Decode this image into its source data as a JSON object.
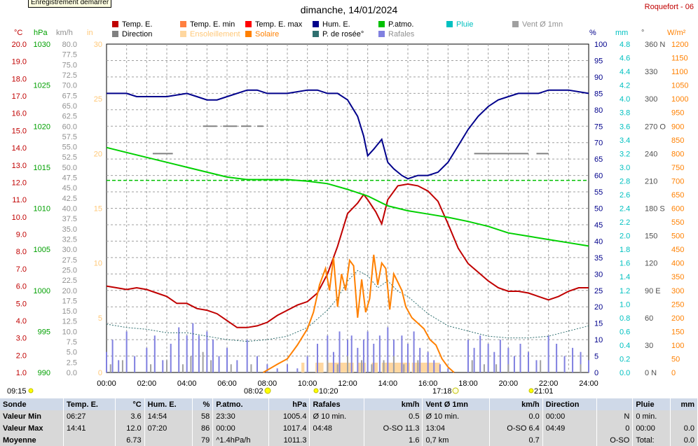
{
  "tooltip": "Enregistrement démarrer",
  "title": "dimanche, 14/01/2024",
  "station": "Roquefort - 06",
  "legend": [
    {
      "label": "Temp. E.",
      "color": "#c00000"
    },
    {
      "label": "Temp. E. min",
      "color": "#ff7f3f"
    },
    {
      "label": "Temp. E. max",
      "color": "#ff0000"
    },
    {
      "label": "Hum. E.",
      "color": "#00008b"
    },
    {
      "label": "P.atmo.",
      "color": "#00c000"
    },
    {
      "label": "Pluie",
      "color": "#00c0c0"
    },
    {
      "label": "Vent Ø 1mn",
      "color": "#a0a0a0"
    },
    {
      "label": "Direction",
      "color": "#808080"
    },
    {
      "label": "Ensoleillement",
      "color": "#ffd7a0"
    },
    {
      "label": "Solaire",
      "color": "#ff8000"
    },
    {
      "label": "P. de rosée°",
      "color": "#2f6f6f"
    },
    {
      "label": "Rafales",
      "color": "#8080e0"
    }
  ],
  "axis_units": {
    "temp": "°C",
    "press": "hPa",
    "wind": "km/h",
    "rain_in": "in",
    "hum": "%",
    "rain": "mm",
    "dir": "°",
    "solar": "W/m²"
  },
  "sun": {
    "rise": "08:02",
    "set": "17:18",
    "moonrise": "09:15",
    "moon_up": "10:20",
    "moonset": "21:01"
  },
  "chart_data": {
    "type": "line",
    "title": "dimanche, 14/01/2024",
    "x_ticks": [
      "00:00",
      "02:00",
      "04:00",
      "06:00",
      "08:00",
      "10:00",
      "12:00",
      "14:00",
      "16:00",
      "18:00",
      "20:00",
      "22:00",
      "24:00"
    ],
    "axes": {
      "temp": {
        "ticks": [
          "20.0",
          "19.0",
          "18.0",
          "17.0",
          "16.0",
          "15.0",
          "14.0",
          "13.0",
          "12.0",
          "11.0",
          "10.0",
          "9.0",
          "8.0",
          "7.0",
          "6.0",
          "5.0",
          "4.0",
          "3.0",
          "2.0",
          "1.0"
        ],
        "range": [
          1,
          20
        ]
      },
      "press": {
        "ticks": [
          "1030",
          "1025",
          "1020",
          "1015",
          "1010",
          "1005",
          "1000",
          "995",
          "990"
        ],
        "range": [
          990,
          1030
        ]
      },
      "wind": {
        "ticks": [
          "80.0",
          "77.5",
          "75.0",
          "72.5",
          "70.0",
          "67.5",
          "65.0",
          "62.5",
          "60.0",
          "57.5",
          "55.0",
          "52.5",
          "50.0",
          "47.5",
          "45.0",
          "42.5",
          "40.0",
          "37.5",
          "35.0",
          "32.5",
          "30.0",
          "27.5",
          "25.0",
          "22.5",
          "20.0",
          "17.5",
          "15.0",
          "12.5",
          "10.0",
          "7.5",
          "5.0",
          "2.5",
          "0.0"
        ],
        "range": [
          0,
          80
        ]
      },
      "rain_in": {
        "ticks": [
          "30",
          "25",
          "20",
          "15",
          "10",
          "5",
          "0"
        ],
        "range": [
          0,
          30
        ]
      },
      "hum": {
        "ticks": [
          "100",
          "95",
          "90",
          "85",
          "80",
          "75",
          "70",
          "65",
          "60",
          "55",
          "50",
          "45",
          "40",
          "35",
          "30",
          "25",
          "20",
          "15",
          "10",
          "5",
          "0"
        ],
        "range": [
          0,
          100
        ]
      },
      "rain": {
        "ticks": [
          "4.8",
          "4.6",
          "4.4",
          "4.2",
          "4.0",
          "3.8",
          "3.6",
          "3.4",
          "3.2",
          "3.0",
          "2.8",
          "2.6",
          "2.4",
          "2.2",
          "2.0",
          "1.8",
          "1.6",
          "1.4",
          "1.2",
          "1.0",
          "0.8",
          "0.6",
          "0.4",
          "0.2",
          "0.0"
        ],
        "range": [
          0,
          5
        ]
      },
      "dir": {
        "ticks": [
          "360 N",
          "330",
          "300",
          "270 O",
          "240",
          "210",
          "180 S",
          "150",
          "120",
          "90 E",
          "60",
          "30",
          "0 N"
        ],
        "range": [
          0,
          360
        ]
      },
      "solar": {
        "ticks": [
          "1200",
          "1150",
          "1100",
          "1050",
          "1000",
          "950",
          "900",
          "850",
          "800",
          "750",
          "700",
          "650",
          "600",
          "550",
          "500",
          "450",
          "400",
          "350",
          "300",
          "250",
          "200",
          "150",
          "100",
          "50",
          "0"
        ],
        "range": [
          0,
          1200
        ]
      }
    },
    "series": [
      {
        "name": "Temp. E.",
        "axis": "temp",
        "color": "#c00000",
        "x": [
          0,
          0.5,
          1,
          1.5,
          2,
          2.5,
          3,
          3.5,
          4,
          4.5,
          5,
          5.5,
          6,
          6.5,
          7,
          7.5,
          8,
          8.5,
          9,
          9.5,
          10,
          10.5,
          11,
          11.5,
          12,
          12.5,
          12.8,
          13,
          13.4,
          13.7,
          14,
          14.5,
          15,
          15.5,
          16,
          16.5,
          17,
          17.5,
          18,
          18.5,
          19,
          19.5,
          20,
          20.5,
          21,
          21.5,
          22,
          22.5,
          23,
          23.5,
          24
        ],
        "y": [
          6.0,
          5.9,
          5.8,
          5.9,
          5.8,
          5.6,
          5.4,
          5.0,
          5.0,
          4.7,
          4.6,
          4.4,
          4.0,
          3.6,
          3.6,
          3.7,
          3.9,
          4.3,
          4.6,
          4.9,
          5.1,
          5.6,
          6.7,
          8.3,
          10.2,
          10.8,
          11.3,
          11.0,
          10.3,
          9.6,
          11.0,
          11.8,
          11.9,
          11.8,
          11.5,
          10.9,
          9.6,
          8.2,
          7.3,
          6.8,
          6.3,
          5.9,
          5.7,
          5.7,
          5.6,
          5.4,
          5.2,
          5.4,
          5.7,
          5.9,
          5.9
        ]
      },
      {
        "name": "Hum. E.",
        "axis": "hum",
        "color": "#00008b",
        "x": [
          0,
          1,
          1.5,
          2,
          3,
          4,
          4.5,
          5,
          5.5,
          6,
          7,
          7.5,
          8,
          9,
          10,
          10.5,
          11,
          11.5,
          12,
          12.5,
          12.8,
          13,
          13.3,
          13.7,
          14,
          14.3,
          14.7,
          15,
          15.5,
          16,
          16.5,
          17,
          17.5,
          18,
          18.5,
          19,
          19.5,
          20,
          20.5,
          21,
          21.5,
          22,
          23,
          24
        ],
        "y": [
          85,
          85,
          84,
          84,
          84,
          85,
          84,
          83,
          83,
          84,
          86,
          86,
          85,
          85,
          86,
          86,
          85,
          85,
          83,
          78,
          72,
          66,
          68,
          71,
          64,
          62,
          60,
          59,
          60,
          60,
          61,
          64,
          69,
          74,
          78,
          81,
          83,
          84,
          85,
          85,
          85,
          86,
          86,
          85
        ]
      },
      {
        "name": "P.atmo.",
        "axis": "press",
        "color": "#00d000",
        "x": [
          0,
          1,
          2,
          3,
          4,
          5,
          6,
          7,
          8,
          9,
          10,
          11,
          12,
          13,
          14,
          15,
          16,
          17,
          18,
          19,
          20,
          21,
          22,
          23,
          24
        ],
        "y": [
          1017.4,
          1016.8,
          1016.2,
          1015.6,
          1015.0,
          1014.4,
          1013.8,
          1013.5,
          1013.5,
          1013.5,
          1013.3,
          1013.0,
          1012.3,
          1011.5,
          1010.3,
          1009.7,
          1009.3,
          1008.9,
          1008.4,
          1007.8,
          1007.0,
          1006.6,
          1006.2,
          1005.8,
          1005.4
        ]
      },
      {
        "name": "P. de rosée°",
        "axis": "temp",
        "color": "#2f6f6f",
        "x": [
          0,
          1,
          2,
          3,
          4,
          5,
          6,
          7,
          8,
          9,
          10,
          11,
          11.5,
          12,
          12.5,
          13,
          13.5,
          14,
          14.5,
          15,
          15.5,
          16,
          17,
          18,
          19,
          20,
          21,
          22,
          23,
          24
        ],
        "y": [
          3.8,
          3.6,
          3.5,
          3.3,
          3.3,
          3.1,
          2.9,
          2.8,
          2.9,
          3.1,
          3.6,
          4.6,
          5.3,
          6.3,
          6.9,
          6.6,
          5.9,
          6.3,
          5.7,
          5.4,
          4.9,
          4.4,
          3.7,
          3.4,
          3.1,
          3.0,
          3.0,
          3.1,
          3.4,
          3.7
        ]
      },
      {
        "name": "Solaire",
        "axis": "solar",
        "color": "#ff8000",
        "x": [
          7.8,
          8.5,
          9,
          9.5,
          10,
          10.3,
          10.6,
          10.9,
          11.1,
          11.3,
          11.5,
          11.7,
          11.9,
          12.1,
          12.3,
          12.5,
          12.7,
          12.9,
          13.1,
          13.3,
          13.5,
          13.7,
          13.9,
          14.1,
          14.3,
          14.5,
          14.7,
          14.9,
          15.2,
          15.5,
          15.8,
          16.1,
          16.4,
          16.7,
          17.0,
          17.3
        ],
        "y": [
          0,
          30,
          50,
          100,
          160,
          220,
          320,
          380,
          300,
          420,
          240,
          360,
          300,
          410,
          390,
          200,
          340,
          220,
          270,
          430,
          320,
          400,
          380,
          230,
          360,
          330,
          300,
          240,
          200,
          180,
          160,
          120,
          100,
          50,
          20,
          0
        ]
      }
    ],
    "bars": [
      {
        "name": "Rafales",
        "axis": "wind",
        "color": "#8080e0",
        "x": [
          0,
          0.3,
          0.6,
          1,
          1.4,
          2,
          2.4,
          2.8,
          3.2,
          3.6,
          4,
          4.3,
          4.6,
          5,
          5.3,
          5.6,
          6,
          6.5,
          7,
          7.5,
          8,
          8.5,
          9,
          9.5,
          10,
          10.5,
          11,
          11.3,
          11.6,
          12,
          12.2,
          12.5,
          12.8,
          13,
          13.3,
          13.6,
          14,
          14.3,
          14.7,
          15,
          15.3,
          15.6,
          16,
          16.3,
          16.6,
          17,
          18,
          18.3,
          18.6,
          19,
          19.3,
          19.6,
          20,
          20.3,
          20.6,
          21,
          21.4,
          22,
          22.4,
          22.8,
          23.2,
          23.6,
          24
        ],
        "y": [
          5,
          8,
          3,
          10,
          4,
          6,
          9,
          3,
          7,
          11,
          9,
          12,
          9,
          10,
          8,
          4,
          6,
          3,
          8,
          4,
          2,
          1,
          2,
          1,
          4,
          7,
          9,
          5,
          10,
          8,
          9,
          6,
          8,
          10,
          7,
          9,
          11,
          8,
          9,
          7,
          10,
          6,
          5,
          3,
          2,
          1,
          8,
          6,
          9,
          7,
          5,
          8,
          6,
          4,
          7,
          5,
          3,
          9,
          7,
          4,
          6,
          5,
          3
        ]
      },
      {
        "name": "Vent Ø 1mn",
        "axis": "wind",
        "color": "#a0a0a0",
        "x": [
          0.2,
          0.8,
          2.2,
          3,
          3.8,
          4.2,
          4.8,
          5.2,
          6.2,
          7.2,
          11,
          11.5,
          12,
          12.7,
          13.2,
          13.8,
          14.3,
          14.8,
          15.5,
          18.2,
          18.8,
          19.4,
          20,
          21.6,
          23.6
        ],
        "y": [
          2,
          3,
          2,
          3,
          2,
          4,
          5,
          3,
          2,
          2,
          3,
          2,
          4,
          3,
          2,
          3,
          4,
          2,
          3,
          3,
          2,
          2,
          2,
          3,
          2
        ]
      }
    ],
    "sun_bars": {
      "name": "Ensoleillement",
      "color": "#ffd7a0",
      "intervals": [
        [
          9.7,
          9.85
        ],
        [
          10.4,
          10.8
        ],
        [
          11.0,
          12.3
        ],
        [
          12.5,
          12.9
        ],
        [
          13.2,
          13.5
        ],
        [
          13.7,
          15.1
        ],
        [
          15.2,
          16.6
        ]
      ]
    },
    "direction_marks": {
      "name": "Direction",
      "axis": "dir",
      "color": "#808080",
      "segments": [
        [
          2.3,
          3.3,
          240
        ],
        [
          4.8,
          5.5,
          270
        ],
        [
          5.8,
          6.5,
          270
        ],
        [
          6.7,
          7.2,
          270
        ],
        [
          7.5,
          7.8,
          270
        ],
        [
          18.3,
          21.0,
          240
        ],
        [
          21.4,
          22.0,
          240
        ]
      ]
    },
    "flat_line": {
      "name": "Temp. E. min",
      "axis": "hum",
      "color": "#00c000",
      "y": 58.5
    },
    "grid": true,
    "legend_position": "top"
  },
  "stats": {
    "headers": [
      "Sonde",
      "Temp. E.",
      "°C",
      "Hum. E.",
      "%",
      "P.atmo.",
      "hPa",
      "Rafales",
      "km/h",
      "Vent Ø 1mn",
      "km/h",
      "Direction",
      "",
      "Pluie",
      "mm"
    ],
    "rows": [
      [
        "Valeur Min",
        "06:27",
        "3.6",
        "14:54",
        "58",
        "23:30",
        "1005.4",
        "Ø 10 min.",
        "0.5",
        "Ø 10 min.",
        "0.0",
        "00:00",
        "N",
        "0 min.",
        ""
      ],
      [
        "Valeur Max",
        "14:41",
        "12.0",
        "07:20",
        "86",
        "00:00",
        "1017.4",
        "04:48",
        "O-SO 11.3",
        "13:04",
        "O-SO 6.4",
        "04:49",
        "0",
        "00:00",
        "0.0"
      ],
      [
        "Moyenne",
        "",
        "6.73",
        "",
        "79",
        "^1.4hPa/h",
        "1011.3",
        "",
        "1.6",
        "0,7 km",
        "0.7",
        "",
        "O-SO",
        "Total:",
        "0.0"
      ]
    ]
  }
}
